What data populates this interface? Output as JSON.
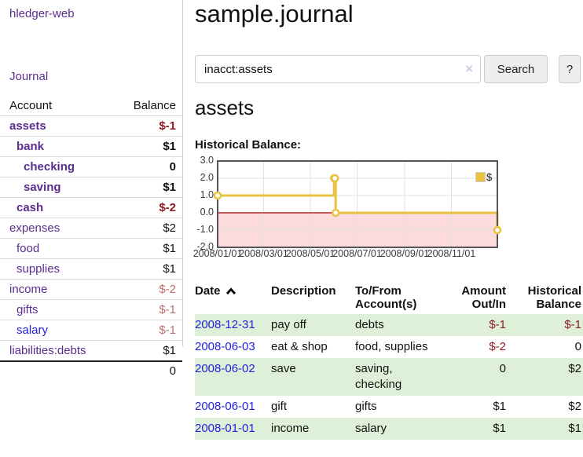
{
  "colors": {
    "accent_purple": "#5b2d90",
    "link_blue": "#2222dd",
    "negative_strong": "#8e1a22",
    "negative_soft": "#b96f6f",
    "row_stripe_green": "#dff0d8",
    "chart_line_gold": "#e8c240",
    "chart_negative_fill": "#fbdbdb",
    "chart_zero_line": "#a40000"
  },
  "app": {
    "brand": "hledger-web"
  },
  "sidebar": {
    "journal_link": "Journal",
    "accounts_table": {
      "headers": {
        "account": "Account",
        "balance": "Balance"
      },
      "rows": [
        {
          "name": "assets",
          "balance": "$-1",
          "indent": 1,
          "bold": true,
          "balance_class": "neg-strong"
        },
        {
          "name": "bank",
          "balance": "$1",
          "indent": 2,
          "bold": true,
          "balance_class": ""
        },
        {
          "name": "checking",
          "balance": "0",
          "indent": 3,
          "bold": true,
          "balance_class": ""
        },
        {
          "name": "saving",
          "balance": "$1",
          "indent": 3,
          "bold": true,
          "balance_class": ""
        },
        {
          "name": "cash",
          "balance": "$-2",
          "indent": 2,
          "bold": true,
          "balance_class": "neg-strong"
        },
        {
          "name": "expenses",
          "balance": "$2",
          "indent": 1,
          "bold": false,
          "balance_class": ""
        },
        {
          "name": "food",
          "balance": "$1",
          "indent": 2,
          "bold": false,
          "balance_class": ""
        },
        {
          "name": "supplies",
          "balance": "$1",
          "indent": 2,
          "bold": false,
          "balance_class": ""
        },
        {
          "name": "income",
          "balance": "$-2",
          "indent": 1,
          "bold": false,
          "balance_class": "neg-soft"
        },
        {
          "name": "gifts",
          "balance": "$-1",
          "indent": 2,
          "bold": false,
          "balance_class": "neg-soft"
        },
        {
          "name": "salary",
          "balance": "$-1",
          "indent": 2,
          "bold": false,
          "balance_class": "neg-soft",
          "link_style": "unvisited"
        },
        {
          "name": "liabilities:debts",
          "balance": "$1",
          "indent": 1,
          "bold": false,
          "balance_class": ""
        }
      ],
      "total": "0"
    }
  },
  "main": {
    "title": "sample.journal",
    "search": {
      "value": "inacct:assets",
      "clear_icon": "×",
      "button_label": "Search",
      "help_label": "?"
    },
    "account_heading": "assets",
    "chart_heading": "Historical Balance:"
  },
  "chart_data": {
    "type": "line",
    "mode": "steps-with-markers",
    "title": "Historical Balance",
    "ylim": [
      -2,
      3
    ],
    "yticks": [
      "3.0",
      "2.0",
      "1.0",
      "0.0",
      "-1.0",
      "-2.0"
    ],
    "ytick_values": [
      3,
      2,
      1,
      0,
      -1,
      -2
    ],
    "xticks": [
      "2008/01/01",
      "2008/03/01",
      "2008/05/01",
      "2008/07/01",
      "2008/09/01",
      "2008/11/01"
    ],
    "x_range": [
      "2008-01-01",
      "2008-12-31"
    ],
    "grid": true,
    "negative_region_shaded": true,
    "legend": {
      "position": "top-right",
      "entries": [
        "$"
      ]
    },
    "series": [
      {
        "name": "$",
        "points": [
          {
            "date": "2008-01-01",
            "value": 1
          },
          {
            "date": "2008-06-01",
            "value": 2
          },
          {
            "date": "2008-06-02",
            "value": 2
          },
          {
            "date": "2008-06-03",
            "value": 0
          },
          {
            "date": "2008-12-31",
            "value": -1
          }
        ]
      }
    ]
  },
  "register_table": {
    "headers": {
      "date": "Date",
      "description": "Description",
      "accounts": "To/From Account(s)",
      "amount": "Amount Out/In",
      "balance": "Historical Balance"
    },
    "sort": {
      "column": "date",
      "direction": "ascending"
    },
    "rows": [
      {
        "date": "2008-12-31",
        "description": "pay off",
        "accounts": "debts",
        "amount": "$-1",
        "amount_class": "neg-strong",
        "balance": "$-1",
        "balance_class": "neg-strong"
      },
      {
        "date": "2008-06-03",
        "description": "eat & shop",
        "accounts": "food, supplies",
        "amount": "$-2",
        "amount_class": "neg-strong",
        "balance": "0",
        "balance_class": ""
      },
      {
        "date": "2008-06-02",
        "description": "save",
        "accounts": "saving, checking",
        "amount": "0",
        "amount_class": "",
        "balance": "$2",
        "balance_class": ""
      },
      {
        "date": "2008-06-01",
        "description": "gift",
        "accounts": "gifts",
        "amount": "$1",
        "amount_class": "",
        "balance": "$2",
        "balance_class": ""
      },
      {
        "date": "2008-01-01",
        "description": "income",
        "accounts": "salary",
        "amount": "$1",
        "amount_class": "",
        "balance": "$1",
        "balance_class": ""
      }
    ]
  }
}
